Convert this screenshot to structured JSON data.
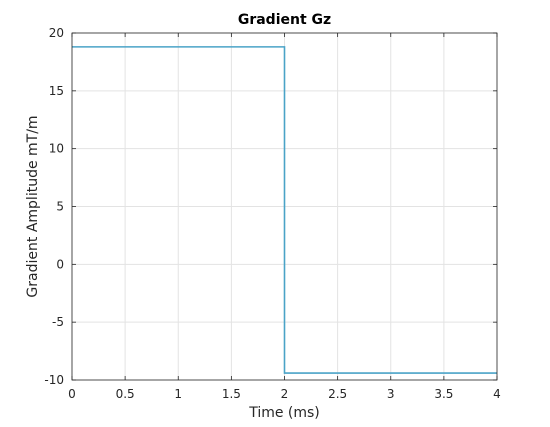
{
  "chart_data": {
    "type": "line",
    "title": "Gradient Gz",
    "xlabel": "Time (ms)",
    "ylabel": "Gradient Amplitude mT/m",
    "xlim": [
      0,
      4
    ],
    "ylim": [
      -10,
      20
    ],
    "xticks": [
      0,
      0.5,
      1,
      1.5,
      2,
      2.5,
      3,
      3.5,
      4
    ],
    "xtick_labels": [
      "0",
      "0.5",
      "1",
      "1.5",
      "2",
      "2.5",
      "3",
      "3.5",
      "4"
    ],
    "yticks": [
      -10,
      -5,
      0,
      5,
      10,
      15,
      20
    ],
    "ytick_labels": [
      "-10",
      "-5",
      "0",
      "5",
      "10",
      "15",
      "20"
    ],
    "grid": true,
    "series": [
      {
        "color": "#4aa3c7",
        "x": [
          0,
          2,
          2,
          4
        ],
        "y": [
          18.8,
          18.8,
          -9.4,
          -9.4
        ]
      }
    ]
  }
}
